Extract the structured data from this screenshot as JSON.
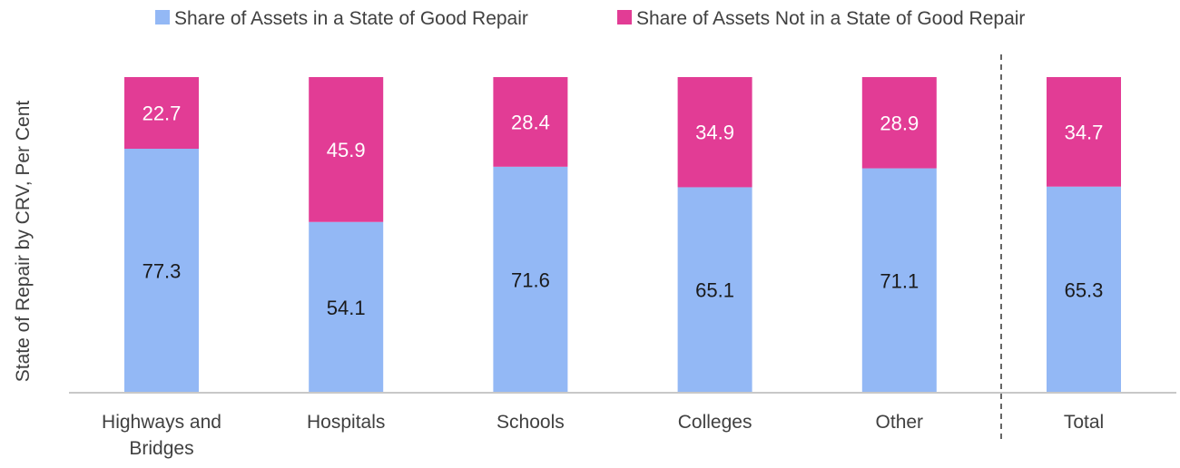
{
  "chart_data": {
    "type": "bar",
    "stacked": true,
    "title": "",
    "xlabel": "",
    "ylabel": "State of Repair by CRV, Per Cent",
    "ylim": [
      0,
      100
    ],
    "grid": false,
    "legend_position": "top",
    "categories": [
      "Highways and Bridges",
      "Hospitals",
      "Schools",
      "Colleges",
      "Other",
      "Total"
    ],
    "category_lines": [
      [
        "Highways and",
        "Bridges"
      ],
      [
        "Hospitals"
      ],
      [
        "Schools"
      ],
      [
        "Colleges"
      ],
      [
        "Other"
      ],
      [
        "Total"
      ]
    ],
    "separator_before_category": "Total",
    "series": [
      {
        "name": "Share of Assets in a State of Good Repair",
        "color": "#93b8f5",
        "label_color": "#1a1a1a",
        "values": [
          77.3,
          54.1,
          71.6,
          65.1,
          71.1,
          65.3
        ],
        "labels": [
          "77.3",
          "54.1",
          "71.6",
          "65.1",
          "71.1",
          "65.3"
        ]
      },
      {
        "name": "Share of Assets Not in a State of Good Repair",
        "color": "#e23c95",
        "label_color": "#ffffff",
        "values": [
          22.7,
          45.9,
          28.4,
          34.9,
          28.9,
          34.7
        ],
        "labels": [
          "22.7",
          "45.9",
          "28.4",
          "34.9",
          "28.9",
          "34.7"
        ]
      }
    ]
  }
}
